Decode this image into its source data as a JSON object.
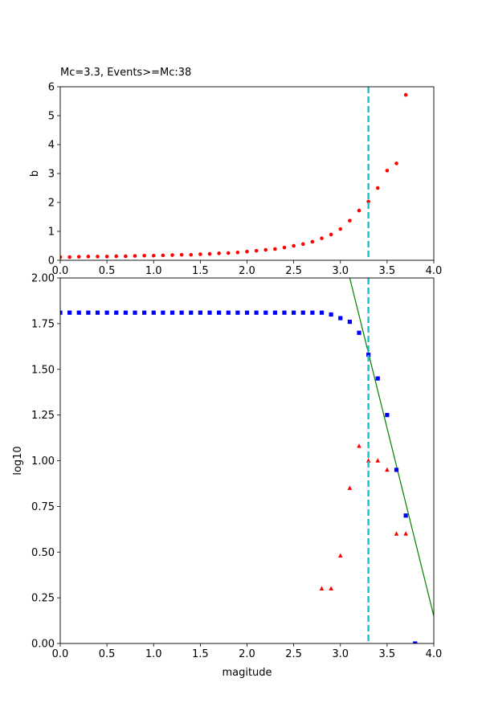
{
  "chart_data": [
    {
      "type": "scatter",
      "title": "Mc=3.3, Events>=Mc:38",
      "xlabel": "",
      "ylabel": "b",
      "xlim": [
        0,
        4
      ],
      "ylim": [
        0,
        6
      ],
      "xticks": [
        "0.0",
        "0.5",
        "1.0",
        "1.5",
        "2.0",
        "2.5",
        "3.0",
        "3.5",
        "4.0"
      ],
      "yticks": [
        "0",
        "1",
        "2",
        "3",
        "4",
        "5",
        "6"
      ],
      "vline": {
        "x": 3.3,
        "color": "#17becf",
        "style": "dashed"
      },
      "series": [
        {
          "marker": "circle",
          "color": "#ff0000",
          "x": [
            0.0,
            0.1,
            0.2,
            0.3,
            0.4,
            0.5,
            0.6,
            0.7,
            0.8,
            0.9,
            1.0,
            1.1,
            1.2,
            1.3,
            1.4,
            1.5,
            1.6,
            1.7,
            1.8,
            1.9,
            2.0,
            2.1,
            2.2,
            2.3,
            2.4,
            2.5,
            2.6,
            2.7,
            2.8,
            2.9,
            3.0,
            3.1,
            3.2,
            3.3,
            3.4,
            3.5,
            3.6,
            3.7
          ],
          "y": [
            0.11,
            0.11,
            0.12,
            0.13,
            0.13,
            0.13,
            0.14,
            0.14,
            0.15,
            0.16,
            0.16,
            0.17,
            0.18,
            0.19,
            0.19,
            0.21,
            0.22,
            0.24,
            0.25,
            0.27,
            0.3,
            0.33,
            0.36,
            0.39,
            0.44,
            0.5,
            0.56,
            0.64,
            0.76,
            0.89,
            1.08,
            1.37,
            1.72,
            2.03,
            2.5,
            3.1,
            3.35,
            5.72
          ]
        }
      ]
    },
    {
      "type": "scatter",
      "title": "",
      "xlabel": "magitude",
      "ylabel": "log10",
      "xlim": [
        0,
        4
      ],
      "ylim": [
        0,
        2
      ],
      "xticks": [
        "0.0",
        "0.5",
        "1.0",
        "1.5",
        "2.0",
        "2.5",
        "3.0",
        "3.5",
        "4.0"
      ],
      "yticks": [
        "0.00",
        "0.25",
        "0.50",
        "0.75",
        "1.00",
        "1.25",
        "1.50",
        "1.75",
        "2.00"
      ],
      "vline": {
        "x": 3.3,
        "color": "#17becf",
        "style": "dashed"
      },
      "fit_line": {
        "color": "#008000",
        "x": [
          3.1,
          4.0
        ],
        "y": [
          2.0,
          0.15
        ]
      },
      "series": [
        {
          "marker": "square",
          "color": "#0000ff",
          "x": [
            0.0,
            0.1,
            0.2,
            0.3,
            0.4,
            0.5,
            0.6,
            0.7,
            0.8,
            0.9,
            1.0,
            1.1,
            1.2,
            1.3,
            1.4,
            1.5,
            1.6,
            1.7,
            1.8,
            1.9,
            2.0,
            2.1,
            2.2,
            2.3,
            2.4,
            2.5,
            2.6,
            2.7,
            2.8,
            2.9,
            3.0,
            3.1,
            3.2,
            3.3,
            3.4,
            3.5,
            3.6,
            3.7,
            3.8
          ],
          "y": [
            1.81,
            1.81,
            1.81,
            1.81,
            1.81,
            1.81,
            1.81,
            1.81,
            1.81,
            1.81,
            1.81,
            1.81,
            1.81,
            1.81,
            1.81,
            1.81,
            1.81,
            1.81,
            1.81,
            1.81,
            1.81,
            1.81,
            1.81,
            1.81,
            1.81,
            1.81,
            1.81,
            1.81,
            1.81,
            1.8,
            1.78,
            1.76,
            1.7,
            1.58,
            1.45,
            1.25,
            0.95,
            0.7,
            0.0
          ]
        },
        {
          "marker": "triangle",
          "color": "#ff0000",
          "x": [
            2.8,
            2.9,
            3.0,
            3.1,
            3.2,
            3.3,
            3.4,
            3.5,
            3.6,
            3.7
          ],
          "y": [
            0.3,
            0.3,
            0.48,
            0.85,
            1.08,
            1.0,
            1.0,
            0.95,
            0.6,
            0.6
          ]
        }
      ]
    }
  ]
}
